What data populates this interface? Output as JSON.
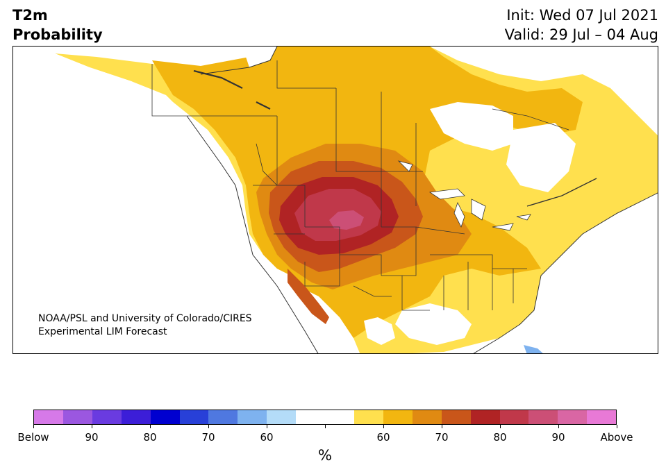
{
  "header": {
    "variable": "T2m",
    "product": "Probability",
    "init": "Init: Wed 07 Jul 2021",
    "valid": "Valid: 29 Jul – 04 Aug"
  },
  "credit": {
    "line1": "NOAA/PSL and University of Colorado/CIRES",
    "line2": "Experimental LIM Forecast"
  },
  "colorbar": {
    "unit": "%",
    "colors": [
      "#d679e8",
      "#9b57e0",
      "#6a3be0",
      "#3c1ed8",
      "#0000d0",
      "#2840d8",
      "#4f78e0",
      "#7eb2ef",
      "#b4dcf8",
      "#ffffff",
      "#ffffff",
      "#ffe04e",
      "#f2b610",
      "#e08a12",
      "#c9561a",
      "#b02324",
      "#c0384a",
      "#cc4f76",
      "#d966a4",
      "#e879d6"
    ],
    "labels": [
      "Below",
      "90",
      "80",
      "70",
      "60",
      "60",
      "70",
      "80",
      "90",
      "Above"
    ]
  },
  "legend_colors": {
    "p55": "#ffe04e",
    "p60": "#f2b610",
    "p65": "#e08a12",
    "p70": "#c9561a",
    "p75": "#b02324",
    "p80": "#c0384a",
    "p85": "#cc4f76",
    "blue": "#7eb2ef"
  }
}
